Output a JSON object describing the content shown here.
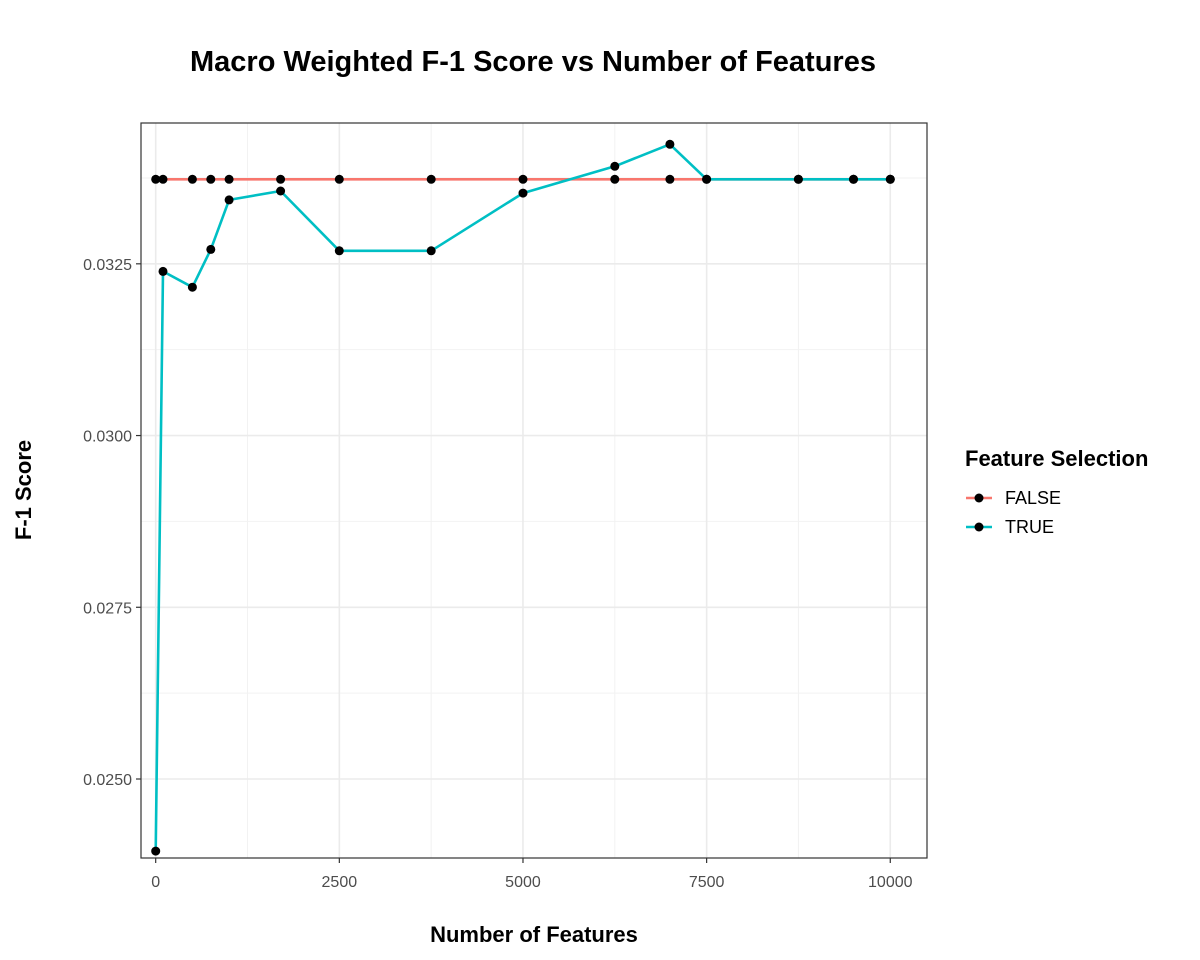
{
  "chart_data": {
    "type": "line",
    "title": "Macro Weighted F-1 Score vs Number of Features",
    "xlabel": "Number of Features",
    "ylabel": "F-1 Score",
    "xlim": [
      -200,
      10500
    ],
    "ylim": [
      0.02385,
      0.03455
    ],
    "x_ticks": [
      0,
      2500,
      5000,
      7500,
      10000
    ],
    "x_tick_labels": [
      "0",
      "2500",
      "5000",
      "7500",
      "10000"
    ],
    "y_ticks": [
      0.025,
      0.0275,
      0.03,
      0.0325
    ],
    "y_tick_labels": [
      "0.0250",
      "0.0275",
      "0.0300",
      "0.0325"
    ],
    "grid": true,
    "legend": {
      "title": "Feature Selection",
      "placement": "right"
    },
    "series": [
      {
        "name": "FALSE",
        "color": "#F8766D",
        "x": [
          0,
          100,
          500,
          750,
          1000,
          1700,
          2500,
          3750,
          5000,
          6250,
          7000,
          7500,
          8750,
          9500,
          10000
        ],
        "y": [
          0.03373,
          0.03373,
          0.03373,
          0.03373,
          0.03373,
          0.03373,
          0.03373,
          0.03373,
          0.03373,
          0.03373,
          0.03373,
          0.03373,
          0.03373,
          0.03373,
          0.03373
        ]
      },
      {
        "name": "TRUE",
        "color": "#00BFC4",
        "x": [
          0,
          100,
          500,
          750,
          1000,
          1700,
          2500,
          3750,
          5000,
          6250,
          7000,
          7500,
          8750,
          9500,
          10000
        ],
        "y": [
          0.02395,
          0.03239,
          0.03216,
          0.03271,
          0.03343,
          0.03356,
          0.03269,
          0.03269,
          0.03353,
          0.03392,
          0.03424,
          0.03373,
          0.03373,
          0.03373,
          0.03373
        ]
      }
    ]
  }
}
